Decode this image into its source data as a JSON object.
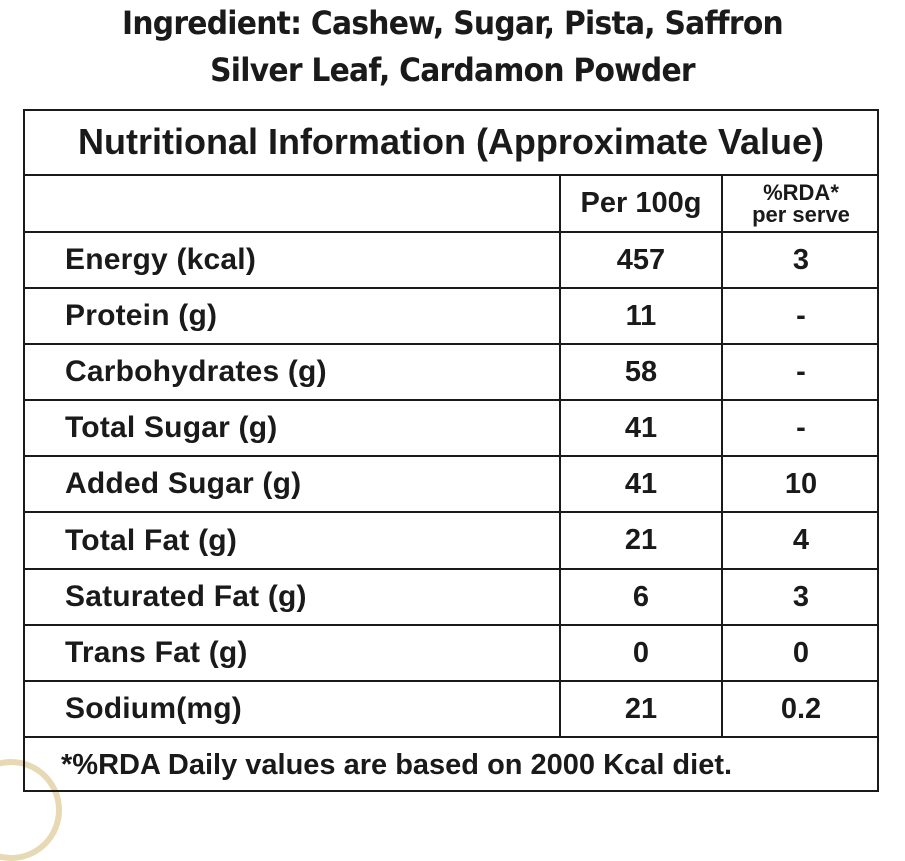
{
  "ingredients": {
    "line1": "Ingredient: Cashew, Sugar, Pista, Saffron",
    "line2": "Silver Leaf, Cardamon Powder"
  },
  "table": {
    "title": "Nutritional Information (Approximate Value)",
    "header": {
      "per_100g": "Per 100g",
      "rda_line1": "%RDA*",
      "rda_line2": "per serve"
    },
    "rows": [
      {
        "nutrient": "Energy (kcal)",
        "per_100g": "457",
        "rda": "3"
      },
      {
        "nutrient": "Protein (g)",
        "per_100g": "11",
        "rda": "-"
      },
      {
        "nutrient": "Carbohydrates (g)",
        "per_100g": "58",
        "rda": "-"
      },
      {
        "nutrient": "Total Sugar (g)",
        "per_100g": "41",
        "rda": "-"
      },
      {
        "nutrient": "Added Sugar (g)",
        "per_100g": "41",
        "rda": "10"
      },
      {
        "nutrient": "Total Fat (g)",
        "per_100g": "21",
        "rda": "4"
      },
      {
        "nutrient": "Saturated Fat (g)",
        "per_100g": "6",
        "rda": "3"
      },
      {
        "nutrient": "Trans Fat (g)",
        "per_100g": "0",
        "rda": "0"
      },
      {
        "nutrient": "Sodium(mg)",
        "per_100g": "21",
        "rda": "0.2"
      }
    ],
    "footnote": "*%RDA Daily values are based on 2000 Kcal diet."
  },
  "colors": {
    "text": "#1a1a1a",
    "background": "#ffffff",
    "corner_accent": "#e8d9b5"
  }
}
